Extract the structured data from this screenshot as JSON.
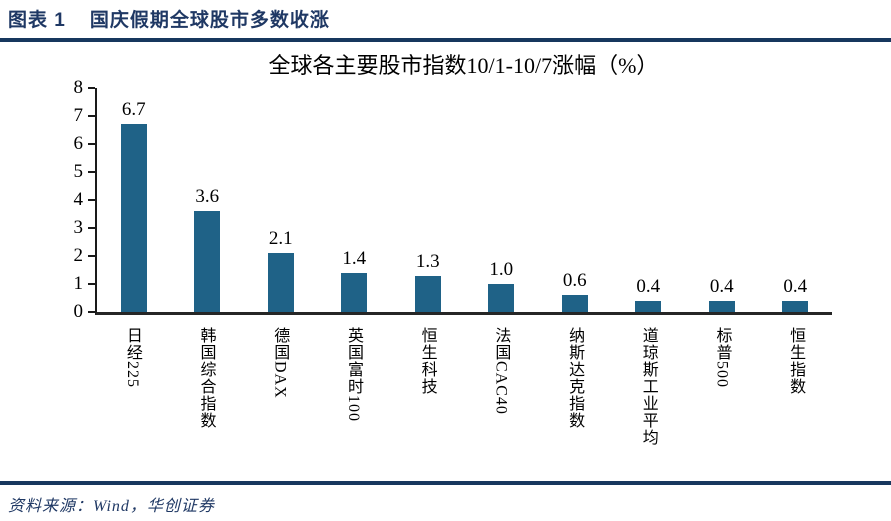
{
  "header": {
    "figure_label": "图表 1",
    "title": "国庆假期全球股市多数收涨"
  },
  "chart_data": {
    "type": "bar",
    "title": "全球各主要股市指数10/1-10/7涨幅（%）",
    "categories": [
      "日经225",
      "韩国综合指数",
      "德国DAX",
      "英国富时100",
      "恒生科技",
      "法国CAC40",
      "纳斯达克指数",
      "道琼斯工业平均",
      "标普500",
      "恒生指数"
    ],
    "values": [
      6.7,
      3.6,
      2.1,
      1.4,
      1.3,
      1.0,
      0.6,
      0.4,
      0.4,
      0.4
    ],
    "value_labels": [
      "6.7",
      "3.6",
      "2.1",
      "1.4",
      "1.3",
      "1.0",
      "0.6",
      "0.4",
      "0.4",
      "0.4"
    ],
    "xlabel": "",
    "ylabel": "",
    "ylim": [
      0,
      8
    ],
    "yticks": [
      0,
      1,
      2,
      3,
      4,
      5,
      6,
      7,
      8
    ],
    "grid": false,
    "legend": "none",
    "bar_color": "#1F6287"
  },
  "footer": {
    "source": "资料来源：Wind，华创证券"
  },
  "colors": {
    "accent_navy": "#17375E",
    "header_text": "#1F3864",
    "bar": "#1F6287",
    "axis": "#262626",
    "text": "#000000"
  }
}
